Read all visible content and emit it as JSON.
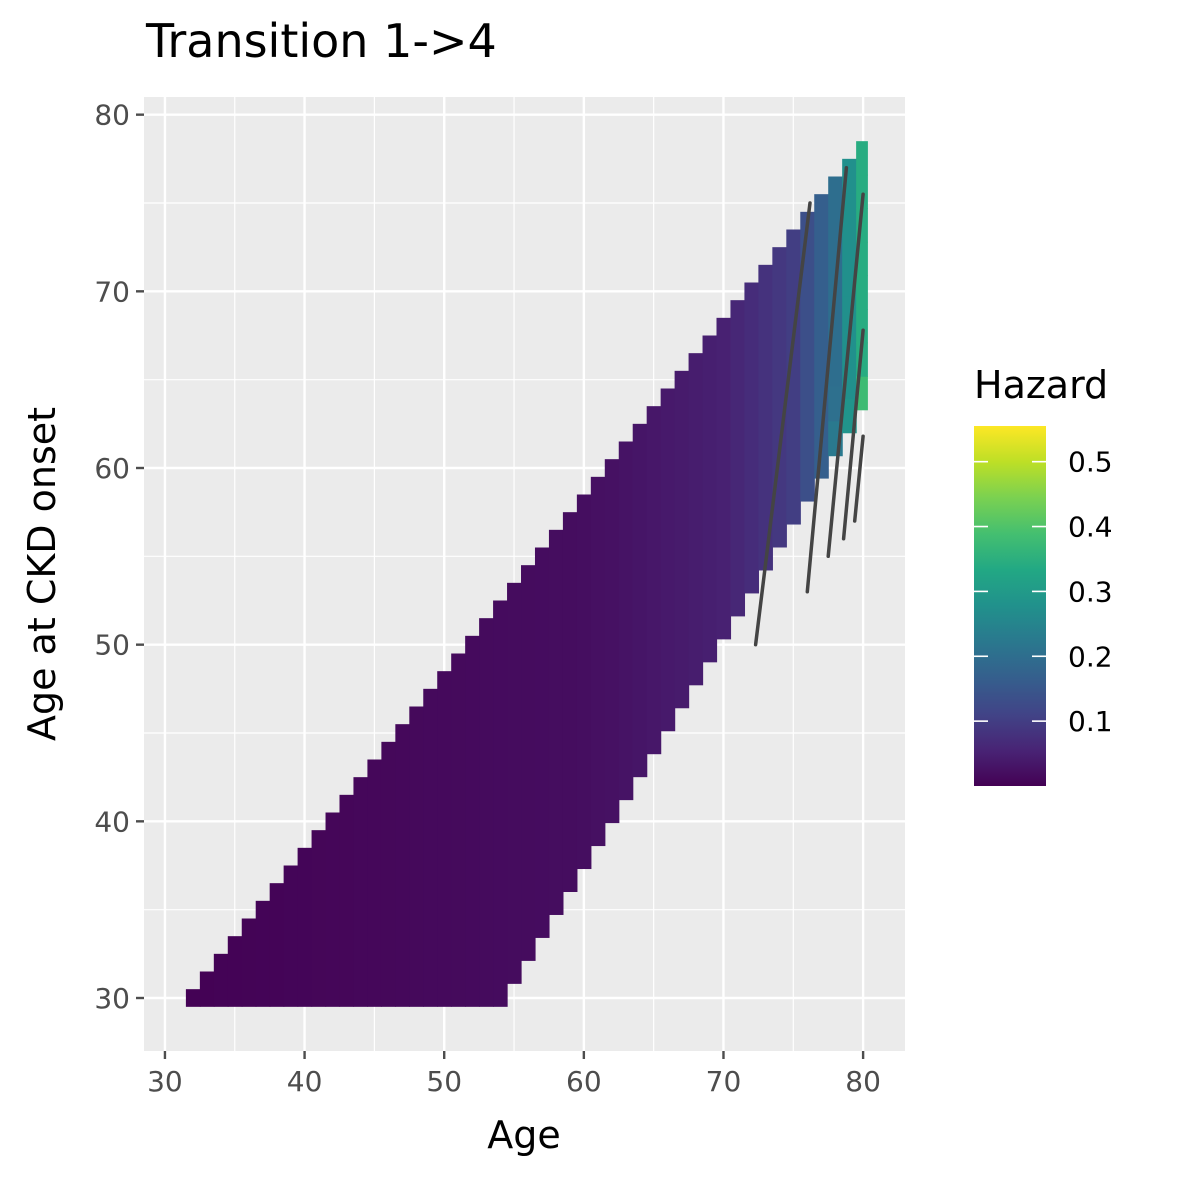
{
  "chart_data": {
    "type": "heatmap",
    "title": "Transition 1->4",
    "xlabel": "Age",
    "ylabel": "Age at CKD onset",
    "xlim": [
      28.5,
      83
    ],
    "ylim": [
      27,
      81
    ],
    "x_ticks": [
      30,
      40,
      50,
      60,
      70,
      80
    ],
    "y_ticks": [
      30,
      40,
      50,
      60,
      70,
      80
    ],
    "x_tick_labels": [
      "30",
      "40",
      "50",
      "60",
      "70",
      "80"
    ],
    "y_tick_labels": [
      "30",
      "40",
      "50",
      "60",
      "70",
      "80"
    ],
    "grid": true,
    "fill_domain": {
      "age_min": 30.5,
      "age_max": 80.3,
      "onset_min": 29.5,
      "onset_max": 78.5,
      "lower_edge": "onset = max(29.5, 1.3 * (age - 53.5) + 29.5)",
      "upper_edge": "onset = min(78.5, age - 1)"
    },
    "hazard_estimates": [
      {
        "age": 30,
        "hazard": 0.0
      },
      {
        "age": 60,
        "hazard": 0.02
      },
      {
        "age": 70,
        "hazard": 0.05
      },
      {
        "age": 75,
        "hazard": 0.1
      },
      {
        "age": 78,
        "hazard": 0.2
      },
      {
        "age": 80,
        "hazard": 0.35
      }
    ],
    "contour_lines": [
      [
        [
          72.3,
          50.0
        ],
        [
          76.2,
          75.0
        ]
      ],
      [
        [
          76.0,
          53.0
        ],
        [
          78.8,
          77.0
        ]
      ],
      [
        [
          77.5,
          55.0
        ],
        [
          80.0,
          75.5
        ]
      ],
      [
        [
          78.6,
          56.0
        ],
        [
          80.0,
          67.8
        ]
      ],
      [
        [
          79.4,
          57.0
        ],
        [
          80.0,
          61.8
        ]
      ]
    ],
    "legend": {
      "title": "Hazard",
      "position": "right",
      "scale": "viridis",
      "range": [
        0.0,
        0.555
      ],
      "breaks": [
        0.1,
        0.2,
        0.3,
        0.4,
        0.5
      ],
      "labels": [
        "0.1",
        "0.2",
        "0.3",
        "0.4",
        "0.5"
      ]
    }
  },
  "colors": {
    "panel_background": "#ebebeb",
    "grid": "#ffffff",
    "contour": "#444444",
    "tick": "#4d4d4d"
  }
}
